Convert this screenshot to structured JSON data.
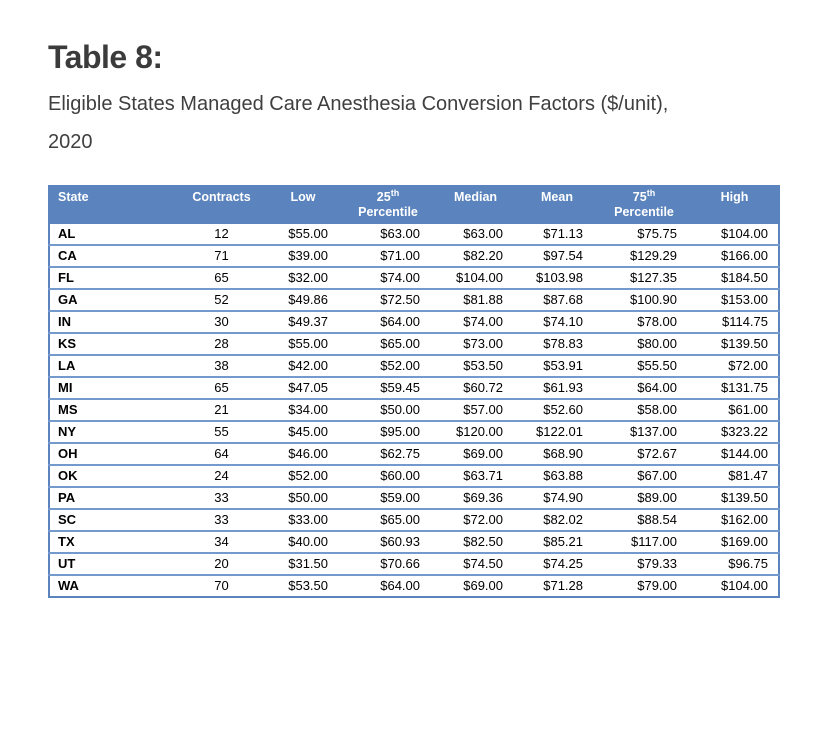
{
  "header": {
    "title": "Table 8:",
    "subtitle_line1": "Eligible States Managed Care Anesthesia Conversion Factors ($/unit),",
    "subtitle_line2": "2020"
  },
  "colors": {
    "table_header_bg": "#5b83be",
    "table_border": "#5b83be",
    "row_divider": "#7499cc",
    "header_text": "#ffffff",
    "body_text": "#000000",
    "title_text": "#3b3b3b"
  },
  "table": {
    "columns": [
      {
        "label": "State",
        "sup": "",
        "line2": ""
      },
      {
        "label": "Contracts",
        "sup": "",
        "line2": ""
      },
      {
        "label": "Low",
        "sup": "",
        "line2": ""
      },
      {
        "label": "25",
        "sup": "th",
        "line2": "Percentile"
      },
      {
        "label": "Median",
        "sup": "",
        "line2": ""
      },
      {
        "label": "Mean",
        "sup": "",
        "line2": ""
      },
      {
        "label": "75",
        "sup": "th",
        "line2": "Percentile"
      },
      {
        "label": "High",
        "sup": "",
        "line2": ""
      }
    ],
    "rows": [
      [
        "AL",
        "12",
        "$55.00",
        "$63.00",
        "$63.00",
        "$71.13",
        "$75.75",
        "$104.00"
      ],
      [
        "CA",
        "71",
        "$39.00",
        "$71.00",
        "$82.20",
        "$97.54",
        "$129.29",
        "$166.00"
      ],
      [
        "FL",
        "65",
        "$32.00",
        "$74.00",
        "$104.00",
        "$103.98",
        "$127.35",
        "$184.50"
      ],
      [
        "GA",
        "52",
        "$49.86",
        "$72.50",
        "$81.88",
        "$87.68",
        "$100.90",
        "$153.00"
      ],
      [
        "IN",
        "30",
        "$49.37",
        "$64.00",
        "$74.00",
        "$74.10",
        "$78.00",
        "$114.75"
      ],
      [
        "KS",
        "28",
        "$55.00",
        "$65.00",
        "$73.00",
        "$78.83",
        "$80.00",
        "$139.50"
      ],
      [
        "LA",
        "38",
        "$42.00",
        "$52.00",
        "$53.50",
        "$53.91",
        "$55.50",
        "$72.00"
      ],
      [
        "MI",
        "65",
        "$47.05",
        "$59.45",
        "$60.72",
        "$61.93",
        "$64.00",
        "$131.75"
      ],
      [
        "MS",
        "21",
        "$34.00",
        "$50.00",
        "$57.00",
        "$52.60",
        "$58.00",
        "$61.00"
      ],
      [
        "NY",
        "55",
        "$45.00",
        "$95.00",
        "$120.00",
        "$122.01",
        "$137.00",
        "$323.22"
      ],
      [
        "OH",
        "64",
        "$46.00",
        "$62.75",
        "$69.00",
        "$68.90",
        "$72.67",
        "$144.00"
      ],
      [
        "OK",
        "24",
        "$52.00",
        "$60.00",
        "$63.71",
        "$63.88",
        "$67.00",
        "$81.47"
      ],
      [
        "PA",
        "33",
        "$50.00",
        "$59.00",
        "$69.36",
        "$74.90",
        "$89.00",
        "$139.50"
      ],
      [
        "SC",
        "33",
        "$33.00",
        "$65.00",
        "$72.00",
        "$82.02",
        "$88.54",
        "$162.00"
      ],
      [
        "TX",
        "34",
        "$40.00",
        "$60.93",
        "$82.50",
        "$85.21",
        "$117.00",
        "$169.00"
      ],
      [
        "UT",
        "20",
        "$31.50",
        "$70.66",
        "$74.50",
        "$74.25",
        "$79.33",
        "$96.75"
      ],
      [
        "WA",
        "70",
        "$53.50",
        "$64.00",
        "$69.00",
        "$71.28",
        "$79.00",
        "$104.00"
      ]
    ]
  },
  "chart_data": {
    "type": "table",
    "title": "Table 8: Eligible States Managed Care Anesthesia Conversion Factors ($/unit), 2020",
    "columns": [
      "State",
      "Contracts",
      "Low",
      "25th Percentile",
      "Median",
      "Mean",
      "75th Percentile",
      "High"
    ],
    "rows": [
      [
        "AL",
        12,
        55.0,
        63.0,
        63.0,
        71.13,
        75.75,
        104.0
      ],
      [
        "CA",
        71,
        39.0,
        71.0,
        82.2,
        97.54,
        129.29,
        166.0
      ],
      [
        "FL",
        65,
        32.0,
        74.0,
        104.0,
        103.98,
        127.35,
        184.5
      ],
      [
        "GA",
        52,
        49.86,
        72.5,
        81.88,
        87.68,
        100.9,
        153.0
      ],
      [
        "IN",
        30,
        49.37,
        64.0,
        74.0,
        74.1,
        78.0,
        114.75
      ],
      [
        "KS",
        28,
        55.0,
        65.0,
        73.0,
        78.83,
        80.0,
        139.5
      ],
      [
        "LA",
        38,
        42.0,
        52.0,
        53.5,
        53.91,
        55.5,
        72.0
      ],
      [
        "MI",
        65,
        47.05,
        59.45,
        60.72,
        61.93,
        64.0,
        131.75
      ],
      [
        "MS",
        21,
        34.0,
        50.0,
        57.0,
        52.6,
        58.0,
        61.0
      ],
      [
        "NY",
        55,
        45.0,
        95.0,
        120.0,
        122.01,
        137.0,
        323.22
      ],
      [
        "OH",
        64,
        46.0,
        62.75,
        69.0,
        68.9,
        72.67,
        144.0
      ],
      [
        "OK",
        24,
        52.0,
        60.0,
        63.71,
        63.88,
        67.0,
        81.47
      ],
      [
        "PA",
        33,
        50.0,
        59.0,
        69.36,
        74.9,
        89.0,
        139.5
      ],
      [
        "SC",
        33,
        33.0,
        65.0,
        72.0,
        82.02,
        88.54,
        162.0
      ],
      [
        "TX",
        34,
        40.0,
        60.93,
        82.5,
        85.21,
        117.0,
        169.0
      ],
      [
        "UT",
        20,
        31.5,
        70.66,
        74.5,
        74.25,
        79.33,
        96.75
      ],
      [
        "WA",
        70,
        53.5,
        64.0,
        69.0,
        71.28,
        79.0,
        104.0
      ]
    ]
  }
}
